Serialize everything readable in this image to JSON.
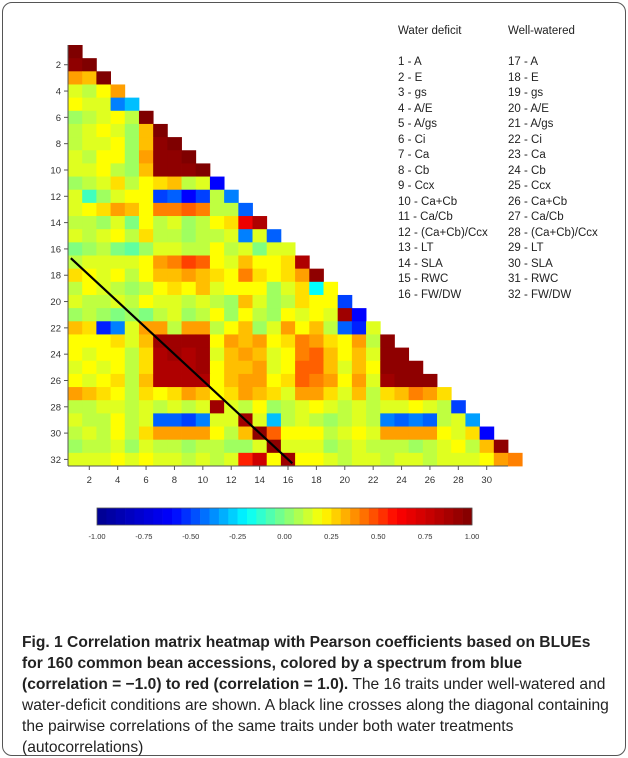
{
  "chart_data": {
    "type": "heatmap",
    "matrix_size": 32,
    "y_ticks": [
      2,
      4,
      6,
      8,
      10,
      12,
      14,
      16,
      18,
      20,
      22,
      24,
      26,
      28,
      30,
      32
    ],
    "x_ticks": [
      2,
      4,
      6,
      8,
      10,
      12,
      14,
      16,
      18,
      20,
      22,
      24,
      26,
      28,
      30
    ],
    "colorbar_ticks": [
      "-1.00",
      "-0.75",
      "-0.50",
      "-0.25",
      "0.00",
      "0.25",
      "0.50",
      "0.75",
      "1.00"
    ],
    "color_range": [
      -1.0,
      1.0
    ],
    "colormap": [
      "#00008f",
      "#0000ff",
      "#00ffff",
      "#ffff00",
      "#ff0000",
      "#7f0000"
    ],
    "diagonal_line": {
      "from_row": 17,
      "from_col": 1,
      "to_row": 32,
      "to_col": 16,
      "color": "#000000"
    },
    "matrix_values_lower_triangle": [
      [
        1.0
      ],
      [
        0.95,
        1.0
      ],
      [
        0.35,
        0.3,
        1.0
      ],
      [
        0.15,
        0.1,
        0.2,
        0.35
      ],
      [
        0.2,
        0.15,
        0.15,
        -0.4,
        -0.3
      ],
      [
        0.05,
        0.1,
        0.15,
        0.2,
        0.1,
        1.0
      ],
      [
        0.1,
        0.15,
        0.2,
        0.15,
        0.05,
        0.3,
        1.0
      ],
      [
        0.1,
        0.15,
        0.15,
        0.2,
        0.05,
        0.3,
        0.95,
        1.0
      ],
      [
        0.15,
        0.1,
        0.2,
        0.2,
        0.05,
        0.35,
        0.95,
        0.95,
        1.0
      ],
      [
        0.15,
        0.15,
        0.2,
        0.1,
        0.05,
        0.3,
        0.95,
        0.95,
        0.95,
        1.0
      ],
      [
        0.05,
        0.1,
        0.15,
        0.25,
        0.1,
        0.2,
        0.25,
        0.3,
        0.1,
        0.15,
        -0.6
      ],
      [
        0.15,
        -0.1,
        0.05,
        0.15,
        0.2,
        0.2,
        -0.5,
        -0.45,
        -0.6,
        -0.5,
        0.1,
        -0.4
      ],
      [
        0.15,
        0.2,
        0.25,
        0.35,
        0.3,
        0.2,
        0.4,
        0.4,
        0.45,
        0.4,
        0.1,
        0.1,
        -0.45
      ],
      [
        0.1,
        0.1,
        0.05,
        0.15,
        0.0,
        0.2,
        0.1,
        0.15,
        0.05,
        0.1,
        0.2,
        0.25,
        0.65,
        0.85
      ],
      [
        0.15,
        0.1,
        0.15,
        0.2,
        0.1,
        0.25,
        0.1,
        0.1,
        0.05,
        0.1,
        0.1,
        0.15,
        -0.4,
        0.15,
        -0.45
      ],
      [
        0.0,
        0.05,
        0.1,
        0.0,
        -0.05,
        0.05,
        0.15,
        0.15,
        0.1,
        0.1,
        0.2,
        0.1,
        0.15,
        0.0,
        0.15,
        0.15
      ],
      [
        0.1,
        0.15,
        0.15,
        0.15,
        0.15,
        0.2,
        0.35,
        0.4,
        0.5,
        0.45,
        0.2,
        0.15,
        0.3,
        0.2,
        0.2,
        0.25,
        0.85
      ],
      [
        0.25,
        0.2,
        0.15,
        0.2,
        0.1,
        0.2,
        0.3,
        0.3,
        0.35,
        0.3,
        0.25,
        0.2,
        0.4,
        0.25,
        0.2,
        0.25,
        0.35,
        0.95
      ],
      [
        0.1,
        0.2,
        0.15,
        0.1,
        0.05,
        0.1,
        0.2,
        0.25,
        0.2,
        0.3,
        0.15,
        0.2,
        0.2,
        0.2,
        0.05,
        0.15,
        0.25,
        -0.2,
        0.2
      ],
      [
        0.15,
        0.1,
        0.1,
        0.15,
        0.1,
        0.2,
        0.15,
        0.15,
        0.1,
        0.15,
        0.1,
        0.05,
        0.3,
        0.15,
        0.05,
        0.1,
        0.25,
        0.2,
        0.2,
        -0.5
      ],
      [
        0.05,
        0.1,
        0.05,
        0.0,
        0.05,
        0.0,
        0.1,
        0.15,
        0.05,
        0.1,
        0.2,
        0.05,
        0.2,
        0.1,
        0.05,
        0.2,
        0.15,
        0.2,
        0.15,
        0.9,
        -0.6
      ],
      [
        0.3,
        0.25,
        -0.55,
        -0.4,
        0.15,
        0.35,
        0.35,
        0.1,
        0.35,
        0.35,
        0.1,
        0.2,
        0.3,
        0.05,
        0.15,
        0.35,
        0.2,
        0.3,
        0.1,
        -0.45,
        -0.55,
        0.15
      ],
      [
        0.2,
        0.2,
        0.2,
        0.25,
        0.15,
        0.3,
        0.9,
        0.9,
        0.9,
        0.9,
        0.2,
        0.35,
        0.3,
        0.35,
        0.2,
        0.25,
        0.4,
        0.35,
        0.25,
        0.2,
        0.35,
        0.1,
        0.95
      ],
      [
        0.2,
        0.15,
        0.2,
        0.2,
        0.1,
        0.25,
        0.85,
        0.9,
        0.85,
        0.9,
        0.15,
        0.3,
        0.35,
        0.3,
        0.15,
        0.2,
        0.4,
        0.45,
        0.3,
        0.2,
        0.3,
        0.15,
        0.95,
        0.95
      ],
      [
        0.15,
        0.2,
        0.15,
        0.2,
        0.1,
        0.25,
        0.85,
        0.85,
        0.85,
        0.9,
        0.2,
        0.3,
        0.3,
        0.35,
        0.15,
        0.2,
        0.45,
        0.45,
        0.3,
        0.15,
        0.3,
        0.2,
        0.95,
        0.95,
        0.95
      ],
      [
        0.2,
        0.15,
        0.2,
        0.25,
        0.1,
        0.3,
        0.85,
        0.85,
        0.85,
        0.85,
        0.2,
        0.3,
        0.35,
        0.35,
        0.2,
        0.25,
        0.45,
        0.4,
        0.35,
        0.2,
        0.35,
        0.15,
        0.9,
        0.95,
        0.95,
        0.95
      ],
      [
        0.35,
        0.3,
        0.25,
        0.2,
        0.1,
        0.25,
        0.2,
        0.25,
        0.35,
        0.3,
        0.2,
        0.25,
        0.35,
        0.3,
        0.25,
        0.15,
        0.35,
        0.35,
        0.25,
        0.15,
        0.3,
        0.1,
        0.25,
        0.3,
        0.4,
        0.35,
        0.25
      ],
      [
        0.1,
        0.1,
        0.15,
        0.15,
        0.1,
        0.15,
        0.1,
        0.15,
        0.1,
        0.15,
        0.9,
        0.15,
        0.1,
        0.2,
        0.05,
        0.1,
        0.15,
        0.2,
        0.15,
        0.1,
        0.15,
        0.1,
        0.15,
        0.15,
        0.2,
        0.15,
        0.1,
        -0.5
      ],
      [
        0.15,
        0.1,
        0.1,
        0.2,
        0.1,
        0.15,
        -0.45,
        -0.45,
        -0.5,
        -0.4,
        0.15,
        0.15,
        0.9,
        0.15,
        -0.3,
        0.1,
        0.15,
        0.1,
        0.05,
        0.1,
        0.15,
        0.1,
        -0.4,
        -0.45,
        -0.4,
        -0.45,
        0.1,
        0.15,
        -0.35
      ],
      [
        0.1,
        0.15,
        0.1,
        0.2,
        0.1,
        0.25,
        0.35,
        0.35,
        0.35,
        0.35,
        0.2,
        0.1,
        0.3,
        0.95,
        0.45,
        0.2,
        0.2,
        0.2,
        0.1,
        0.15,
        0.2,
        0.15,
        0.35,
        0.35,
        0.35,
        0.35,
        0.2,
        0.15,
        0.25,
        -0.6
      ],
      [
        0.05,
        0.1,
        0.1,
        0.15,
        0.05,
        0.15,
        0.1,
        0.1,
        0.05,
        0.1,
        0.1,
        0.05,
        0.05,
        0.15,
        0.95,
        0.15,
        0.15,
        0.15,
        0.05,
        0.1,
        0.15,
        0.1,
        0.1,
        0.1,
        0.05,
        0.1,
        0.15,
        0.2,
        0.1,
        0.3,
        0.95
      ],
      [
        0.15,
        0.15,
        0.15,
        0.2,
        0.15,
        0.2,
        0.15,
        0.15,
        0.1,
        0.15,
        0.1,
        0.15,
        0.55,
        0.75,
        0.2,
        0.9,
        0.2,
        0.2,
        0.15,
        0.1,
        0.15,
        0.15,
        0.1,
        0.15,
        0.15,
        0.1,
        0.15,
        0.15,
        0.15,
        0.2,
        0.35,
        0.4
      ]
    ]
  },
  "legend": {
    "header_left": "Water deficit",
    "header_right": "Well-watered",
    "left_items": [
      "1 - A",
      "2 - E",
      "3 - gs",
      "4 - A/E",
      "5 - A/gs",
      "6 - Ci",
      "7 - Ca",
      "8 - Cb",
      "9 - Ccx",
      "10 - Ca+Cb",
      "11 - Ca/Cb",
      "12 - (Ca+Cb)/Ccx",
      "13 - LT",
      "14 - SLA",
      "15 - RWC",
      "16 - FW/DW"
    ],
    "right_items": [
      "17 - A",
      "18 - E",
      "19 - gs",
      "20 - A/E",
      "21 - A/gs",
      "22 - Ci",
      "23 - Ca",
      "24 - Cb",
      "25 - Ccx",
      "26 - Ca+Cb",
      "27 - Ca/Cb",
      "28 - (Ca+Cb)/Ccx",
      "29 - LT",
      "30 - SLA",
      "31 - RWC",
      "32 - FW/DW"
    ]
  },
  "caption": {
    "title": "Fig. 1 Correlation matrix heatmap with Pearson coefficients based on BLUEs for 160 common bean accessions, colored by a spectrum from blue (correlation = −1.0) to red (correlation = 1.0).",
    "body": " The 16 traits under well-watered and water-deficit conditions are shown. A black line crosses along the diagonal containing the pairwise correlations of the same traits under both water treatments (autocorrelations)"
  }
}
